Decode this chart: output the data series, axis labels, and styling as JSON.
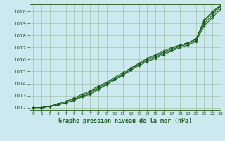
{
  "title": "Graphe pression niveau de la mer (hPa)",
  "bg_color": "#cde9f0",
  "grid_color": "#99bb99",
  "line_color": "#1a5c1a",
  "marker_color": "#1a5c1a",
  "xlim": [
    -0.5,
    23
  ],
  "ylim": [
    1011.8,
    1020.6
  ],
  "yticks": [
    1012,
    1013,
    1014,
    1015,
    1016,
    1017,
    1018,
    1019,
    1020
  ],
  "xticks": [
    0,
    1,
    2,
    3,
    4,
    5,
    6,
    7,
    8,
    9,
    10,
    11,
    12,
    13,
    14,
    15,
    16,
    17,
    18,
    19,
    20,
    21,
    22,
    23
  ],
  "series": [
    [
      1012.0,
      1012.0,
      1012.1,
      1012.2,
      1012.4,
      1012.6,
      1012.9,
      1013.2,
      1013.6,
      1013.9,
      1014.3,
      1014.7,
      1015.1,
      1015.5,
      1015.8,
      1016.1,
      1016.4,
      1016.7,
      1017.0,
      1017.2,
      1017.5,
      1018.8,
      1019.5,
      1020.2
    ],
    [
      1012.0,
      1012.0,
      1012.1,
      1012.3,
      1012.5,
      1012.7,
      1013.0,
      1013.3,
      1013.7,
      1014.0,
      1014.4,
      1014.8,
      1015.2,
      1015.6,
      1015.9,
      1016.2,
      1016.5,
      1016.8,
      1017.1,
      1017.3,
      1017.6,
      1019.0,
      1019.7,
      1020.4
    ],
    [
      1012.0,
      1012.0,
      1012.1,
      1012.2,
      1012.4,
      1012.6,
      1012.9,
      1013.1,
      1013.5,
      1013.9,
      1014.3,
      1014.7,
      1015.2,
      1015.6,
      1016.0,
      1016.3,
      1016.6,
      1016.9,
      1017.2,
      1017.4,
      1017.7,
      1019.2,
      1019.9,
      1020.5
    ],
    [
      1012.0,
      1012.0,
      1012.1,
      1012.3,
      1012.5,
      1012.8,
      1013.1,
      1013.4,
      1013.8,
      1014.1,
      1014.5,
      1014.9,
      1015.3,
      1015.7,
      1016.1,
      1016.4,
      1016.7,
      1017.0,
      1017.2,
      1017.4,
      1017.7,
      1019.3,
      1020.0,
      1020.5
    ]
  ]
}
